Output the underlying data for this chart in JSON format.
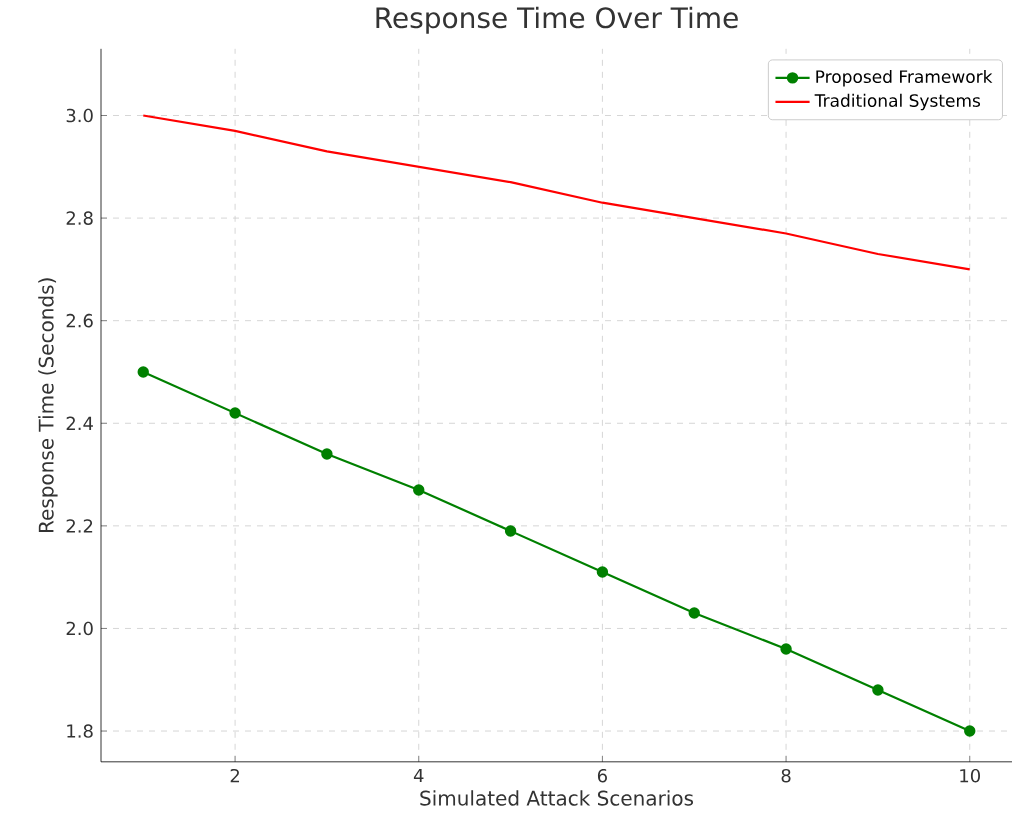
{
  "chart_data": {
    "type": "line",
    "title": "Response Time Over Time",
    "xlabel": "Simulated Attack Scenarios",
    "ylabel": "Response Time (Seconds)",
    "x": [
      1,
      2,
      3,
      4,
      5,
      6,
      7,
      8,
      9,
      10
    ],
    "series": [
      {
        "name": "Proposed Framework",
        "color": "#008000",
        "marker": "circle",
        "values": [
          2.5,
          2.42,
          2.34,
          2.27,
          2.19,
          2.11,
          2.03,
          1.96,
          1.88,
          1.8
        ]
      },
      {
        "name": "Traditional Systems",
        "color": "#ff0000",
        "marker": "none",
        "values": [
          3.0,
          2.97,
          2.93,
          2.9,
          2.87,
          2.83,
          2.8,
          2.77,
          2.73,
          2.7
        ]
      }
    ],
    "xlim": [
      0.54,
      10.46
    ],
    "ylim": [
      1.74,
      3.13
    ],
    "xticks": [
      2,
      4,
      6,
      8,
      10
    ],
    "yticks": [
      {
        "value": 1.8,
        "label": "1.8"
      },
      {
        "value": 2.0,
        "label": "2.0"
      },
      {
        "value": 2.2,
        "label": "2.2"
      },
      {
        "value": 2.4,
        "label": "2.4"
      },
      {
        "value": 2.6,
        "label": "2.6"
      },
      {
        "value": 2.8,
        "label": "2.8"
      },
      {
        "value": 3.0,
        "label": "3.0"
      }
    ],
    "grid": true,
    "legend": "top right",
    "line_style": "solid"
  }
}
